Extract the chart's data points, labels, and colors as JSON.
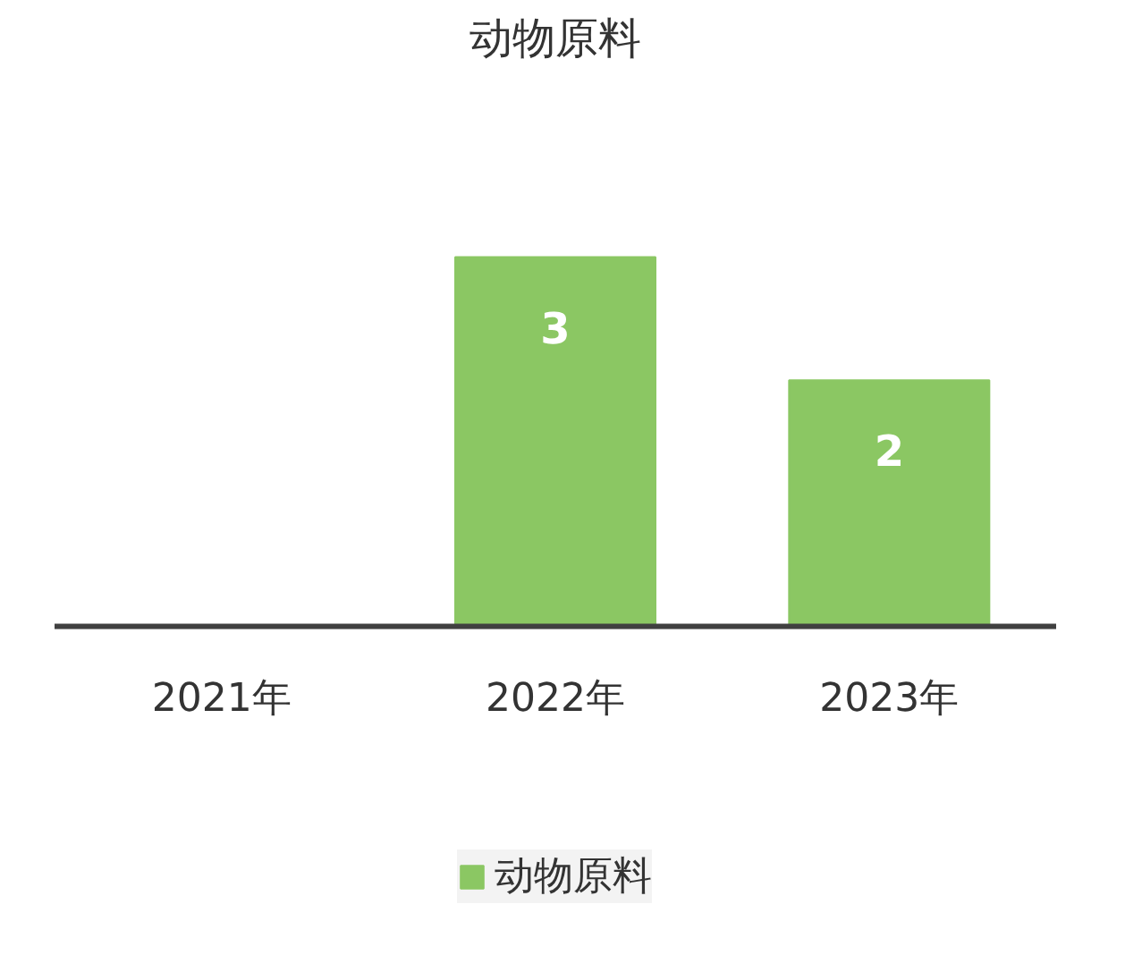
{
  "chart_data": {
    "type": "bar",
    "title": "动物原料",
    "categories": [
      "2021年",
      "2022年",
      "2023年"
    ],
    "series": [
      {
        "name": "动物原料",
        "color": "#8bc763",
        "values": [
          0,
          3,
          2
        ],
        "value_labels": [
          null,
          "3",
          "2"
        ]
      }
    ],
    "grid": false,
    "legend": "bottom"
  }
}
